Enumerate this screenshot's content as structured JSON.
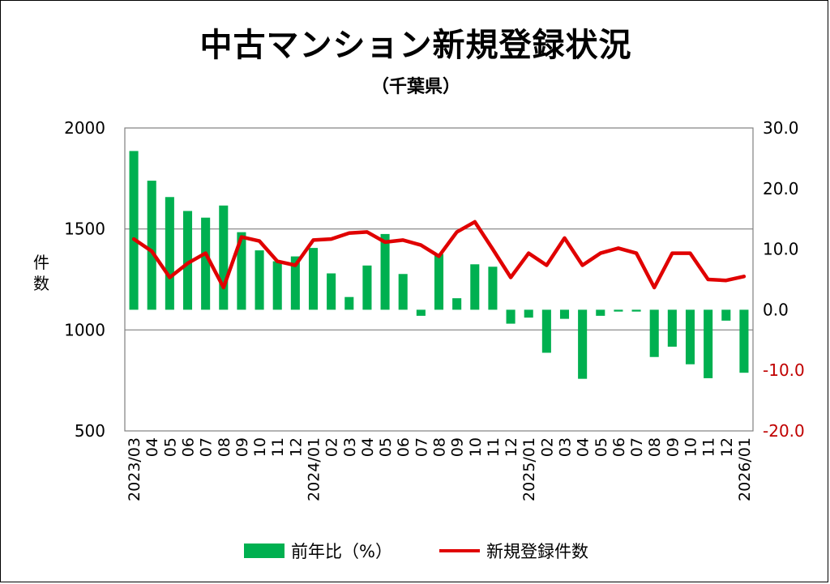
{
  "title": "中古マンション新規登録状況",
  "subtitle": "（千葉県）",
  "y_axis_label": "件数",
  "colors": {
    "bar": "#00b050",
    "line": "#e00000",
    "grid": "#808080",
    "negative_tick": "#c00000"
  },
  "legend": {
    "bar_label": "前年比（%）",
    "line_label": "新規登録件数"
  },
  "chart_data": {
    "type": "bar+line",
    "categories": [
      "2023/03",
      "04",
      "05",
      "06",
      "07",
      "08",
      "09",
      "10",
      "11",
      "12",
      "2024/01",
      "02",
      "03",
      "04",
      "05",
      "06",
      "07",
      "08",
      "09",
      "10",
      "11",
      "12",
      "2025/01",
      "02",
      "03",
      "04",
      "05",
      "06",
      "07",
      "08",
      "09",
      "10",
      "11",
      "12",
      "2026/01"
    ],
    "left_axis": {
      "min": 500,
      "max": 2000,
      "ticks": [
        "2000",
        "1500",
        "1000",
        "500"
      ]
    },
    "right_axis": {
      "min": -20,
      "max": 30,
      "ticks": [
        "30.0",
        "20.0",
        "10.0",
        "0.0",
        "-10.0",
        "-20.0"
      ]
    },
    "series": [
      {
        "name": "前年比（%）",
        "type": "bar",
        "axis": "right",
        "values": [
          26.2,
          21.3,
          18.6,
          16.3,
          15.2,
          17.2,
          12.8,
          9.8,
          8.0,
          8.8,
          10.2,
          6.0,
          2.1,
          7.3,
          12.5,
          5.9,
          -1.0,
          9.2,
          1.9,
          7.5,
          7.1,
          -2.3,
          -1.3,
          -7.1,
          -1.5,
          -11.4,
          -1.0,
          -0.3,
          -0.3,
          -7.8,
          -6.1,
          -9.0,
          -11.3,
          -1.8,
          -10.4
        ]
      },
      {
        "name": "新規登録件数",
        "type": "line",
        "axis": "left",
        "values": [
          1450,
          1390,
          1260,
          1330,
          1380,
          1210,
          1460,
          1440,
          1340,
          1320,
          1445,
          1450,
          1480,
          1485,
          1435,
          1445,
          1420,
          1365,
          1485,
          1535,
          1400,
          1260,
          1380,
          1320,
          1455,
          1320,
          1380,
          1405,
          1380,
          1210,
          1380,
          1380,
          1250,
          1245,
          1265
        ]
      }
    ],
    "x_label_rotation": -90,
    "grid": "horizontal at 1000 and 1500",
    "legend_position": "bottom"
  }
}
